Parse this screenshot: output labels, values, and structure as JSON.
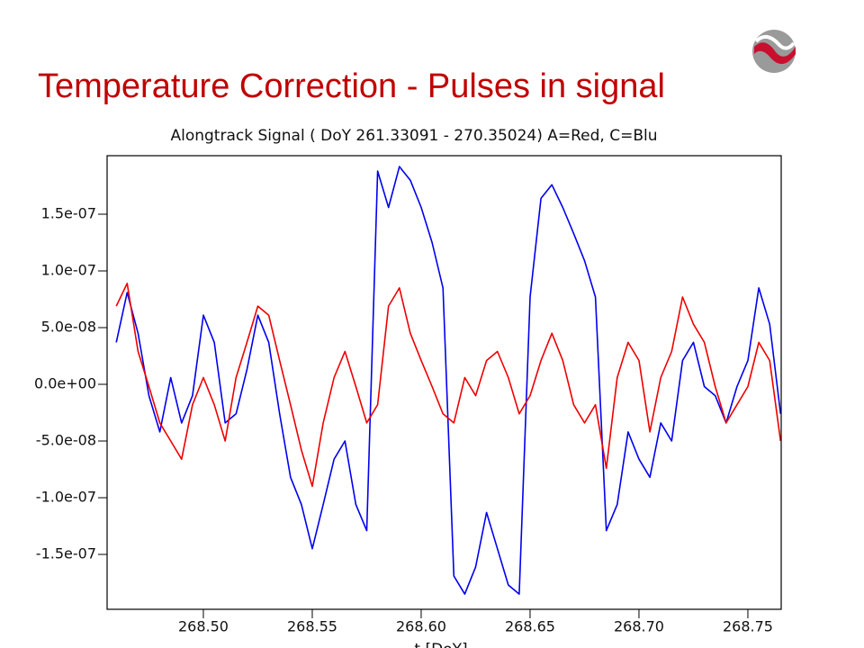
{
  "slide_title": "Temperature Correction - Pulses in signal",
  "chart_data": {
    "type": "line",
    "title": "Alongtrack Signal ( DoY  261.33091 - 270.35024)  A=Red, C=Blu",
    "x_label": "t [DoY]",
    "x": [
      268.46,
      268.465,
      268.47,
      268.475,
      268.48,
      268.485,
      268.49,
      268.495,
      268.5,
      268.505,
      268.51,
      268.515,
      268.52,
      268.525,
      268.53,
      268.535,
      268.54,
      268.545,
      268.55,
      268.555,
      268.56,
      268.565,
      268.57,
      268.575,
      268.58,
      268.585,
      268.59,
      268.595,
      268.6,
      268.605,
      268.61,
      268.615,
      268.62,
      268.625,
      268.63,
      268.635,
      268.64,
      268.645,
      268.65,
      268.655,
      268.66,
      268.665,
      268.67,
      268.675,
      268.68,
      268.685,
      268.69,
      268.695,
      268.7,
      268.705,
      268.71,
      268.715,
      268.72,
      268.725,
      268.73,
      268.735,
      268.74,
      268.745,
      268.75,
      268.755,
      268.76,
      268.765
    ],
    "series": [
      {
        "color": "#0000ee",
        "values": [
          3.7e-08,
          8.1e-08,
          4.5e-08,
          -1e-08,
          -4.2e-08,
          6e-09,
          -3.4e-08,
          -1e-08,
          6.1e-08,
          3.7e-08,
          -3.4e-08,
          -2.6e-08,
          1.3e-08,
          6.1e-08,
          3.7e-08,
          -2.6e-08,
          -8.2e-08,
          -1.06e-07,
          -1.45e-07,
          -1.06e-07,
          -6.6e-08,
          -5e-08,
          -1.06e-07,
          -1.29e-07,
          1.88e-07,
          1.56e-07,
          1.92e-07,
          1.8e-07,
          1.56e-07,
          1.25e-07,
          8.5e-08,
          -1.69e-07,
          -1.85e-07,
          -1.61e-07,
          -1.13e-07,
          -1.45e-07,
          -1.77e-07,
          -1.85e-07,
          7.7e-08,
          1.64e-07,
          1.76e-07,
          1.56e-07,
          1.33e-07,
          1.09e-07,
          7.7e-08,
          -1.29e-07,
          -1.06e-07,
          -4.2e-08,
          -6.6e-08,
          -8.2e-08,
          -3.4e-08,
          -5e-08,
          2.1e-08,
          3.7e-08,
          -2e-09,
          -1e-08,
          -3.4e-08,
          -2e-09,
          2.1e-08,
          8.5e-08,
          5.3e-08,
          -2.6e-08
        ]
      },
      {
        "color": "#ee0000",
        "values": [
          6.9e-08,
          8.9e-08,
          2.9e-08,
          -2e-09,
          -3.4e-08,
          -5e-08,
          -6.6e-08,
          -1.8e-08,
          6e-09,
          -1.8e-08,
          -5e-08,
          6e-09,
          3.7e-08,
          6.9e-08,
          6.1e-08,
          2.1e-08,
          -1.8e-08,
          -5.8e-08,
          -9e-08,
          -3.4e-08,
          6e-09,
          2.9e-08,
          -2e-09,
          -3.4e-08,
          -1.8e-08,
          6.9e-08,
          8.5e-08,
          4.5e-08,
          2.1e-08,
          -2e-09,
          -2.6e-08,
          -3.4e-08,
          6e-09,
          -1e-08,
          2.1e-08,
          2.9e-08,
          6e-09,
          -2.6e-08,
          -1e-08,
          2.1e-08,
          4.5e-08,
          2.1e-08,
          -1.8e-08,
          -3.4e-08,
          -1.8e-08,
          -7.4e-08,
          6e-09,
          3.7e-08,
          2.1e-08,
          -4.2e-08,
          6e-09,
          2.9e-08,
          7.7e-08,
          5.3e-08,
          3.7e-08,
          -2e-09,
          -3.4e-08,
          -1.8e-08,
          -2e-09,
          3.7e-08,
          2.1e-08,
          -5e-08
        ]
      }
    ],
    "xlim": [
      268.4558,
      268.7653
    ],
    "xticks": [
      {
        "value": 268.5,
        "label": "268.50"
      },
      268.55,
      {
        "value": 268.6,
        "label": "268.60"
      },
      268.65,
      {
        "value": 268.7,
        "label": "268.70"
      },
      268.75
    ],
    "ylim": [
      -1.984e-07,
      2.016e-07
    ],
    "yticks": [
      {
        "value": -1.5e-07,
        "label": "-1.5e-07"
      },
      {
        "value": -1e-07,
        "label": "-1.0e-07"
      },
      {
        "value": -5e-08,
        "label": "-5.0e-08"
      },
      {
        "value": 0,
        "label": "0.0e+00"
      },
      {
        "value": 5e-08,
        "label": "5.0e-08"
      },
      {
        "value": 1e-07,
        "label": "1.0e-07"
      },
      {
        "value": 1.5e-07,
        "label": "1.5e-07"
      }
    ]
  }
}
